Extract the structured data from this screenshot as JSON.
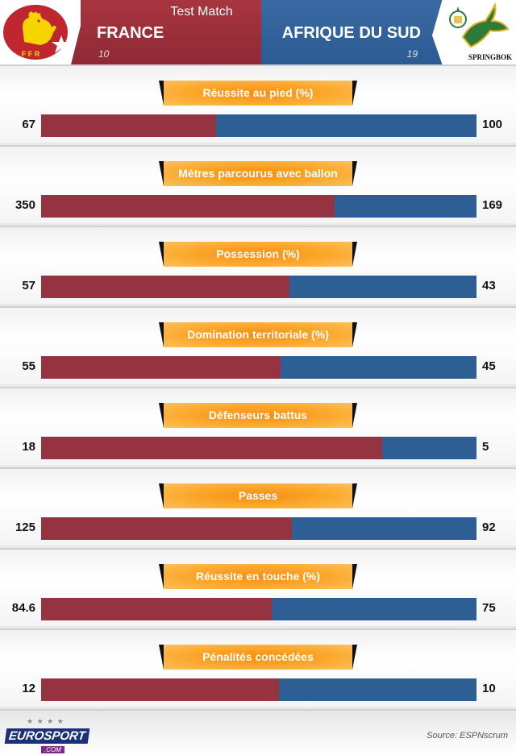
{
  "header": {
    "match_type": "Test Match",
    "team_left": "FRANCE",
    "team_right": "AFRIQUE DU SUD",
    "score_left": "10",
    "score_right": "19",
    "crest_left_text": "F F R",
    "crest_right_text": "SPRINGBOK",
    "colors": {
      "france": "#963340",
      "south_africa": "#2d5f94",
      "label": "#f98d10"
    }
  },
  "chart_data": {
    "type": "bar",
    "orientation": "horizontal-stacked-comparison",
    "series": [
      {
        "name": "FRANCE"
      },
      {
        "name": "AFRIQUE DU SUD"
      }
    ],
    "stats": [
      {
        "label": "Réussite au pied (%)",
        "left": 67,
        "right": 100,
        "left_text": "67",
        "right_text": "100"
      },
      {
        "label": "Mètres parcourus avec ballon",
        "left": 350,
        "right": 169,
        "left_text": "350",
        "right_text": "169"
      },
      {
        "label": "Possession (%)",
        "left": 57,
        "right": 43,
        "left_text": "57",
        "right_text": "43"
      },
      {
        "label": "Domination territoriale (%)",
        "left": 55,
        "right": 45,
        "left_text": "55",
        "right_text": "45"
      },
      {
        "label": "Défenseurs battus",
        "left": 18,
        "right": 5,
        "left_text": "18",
        "right_text": "5"
      },
      {
        "label": "Passes",
        "left": 125,
        "right": 92,
        "left_text": "125",
        "right_text": "92"
      },
      {
        "label": "Réussite en touche (%)",
        "left": 84.6,
        "right": 75,
        "left_text": "84.6",
        "right_text": "75"
      },
      {
        "label": "Pénalités concédées",
        "left": 12,
        "right": 10,
        "left_text": "12",
        "right_text": "10"
      }
    ]
  },
  "footer": {
    "logo_text": "EUROSPORT",
    "logo_sub": ".COM",
    "source": "Source: ESPNscrum"
  }
}
